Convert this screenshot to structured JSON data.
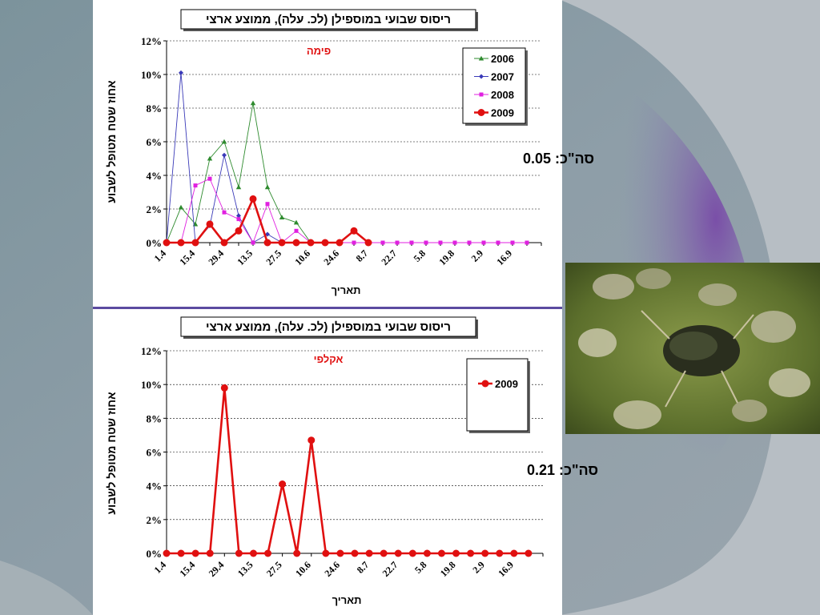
{
  "chart_data": [
    {
      "type": "line",
      "title": "ריסוס שבועי במוספילן (לכ. עלה),  ממוצע ארצי",
      "subtitle": "פימה",
      "ylabel": "אחוז  שטח  מטופל  לשבוע",
      "xlabel": "תאריך",
      "total_label": "סה\"כ: 0.05",
      "ylim": [
        0,
        12
      ],
      "y_ticks": [
        "0%",
        "2%",
        "4%",
        "6%",
        "8%",
        "10%",
        "12%"
      ],
      "x_tick_labels": [
        "1.4",
        "15.4",
        "29.4",
        "13.5",
        "27.5",
        "10.6",
        "24.6",
        "8.7",
        "22.7",
        "5.8",
        "19.8",
        "2.9",
        "16.9"
      ],
      "n_points": 26,
      "grid": true,
      "legend_position": "top-right",
      "series": [
        {
          "name": "2006",
          "color": "#2e8b2e",
          "marker": "triangle",
          "values": [
            0,
            2.1,
            1.1,
            5.0,
            6.0,
            3.3,
            8.3,
            3.3,
            1.5,
            1.2,
            0,
            null,
            null,
            null,
            null,
            null,
            null,
            null,
            null,
            null,
            null,
            null,
            null,
            null,
            null,
            null
          ]
        },
        {
          "name": "2007",
          "color": "#3a3ab8",
          "marker": "diamond",
          "values": [
            0,
            10.1,
            0,
            1.0,
            5.2,
            1.6,
            0,
            0.5,
            0,
            null,
            null,
            null,
            null,
            null,
            null,
            null,
            null,
            null,
            null,
            null,
            null,
            null,
            null,
            null,
            null,
            null
          ]
        },
        {
          "name": "2008",
          "color": "#e020e0",
          "marker": "square",
          "values": [
            0,
            0,
            3.4,
            3.8,
            1.8,
            1.4,
            0,
            2.3,
            0,
            0.7,
            0,
            0,
            0,
            0,
            0,
            0,
            0,
            0,
            0,
            0,
            0,
            0,
            0,
            0,
            0,
            0
          ]
        },
        {
          "name": "2009",
          "color": "#e01010",
          "marker": "circle",
          "values": [
            0,
            0,
            0,
            1.1,
            0,
            0.7,
            2.6,
            0,
            0,
            0,
            0,
            0,
            0,
            0.7,
            0,
            null,
            null,
            null,
            null,
            null,
            null,
            null,
            null,
            null,
            null,
            null
          ]
        }
      ]
    },
    {
      "type": "line",
      "title": "ריסוס שבועי במוספילן (לכ. עלה),  ממוצע ארצי",
      "subtitle": "אקלפי",
      "ylabel": "אחוז  שטח  מטופל  לשבוע",
      "xlabel": "תאריך",
      "total_label": "סה\"כ: 0.21",
      "ylim": [
        0,
        12
      ],
      "y_ticks": [
        "0%",
        "2%",
        "4%",
        "6%",
        "8%",
        "10%",
        "12%"
      ],
      "x_tick_labels": [
        "1.4",
        "15.4",
        "29.4",
        "13.5",
        "27.5",
        "10.6",
        "24.6",
        "8.7",
        "22.7",
        "5.8",
        "19.8",
        "2.9",
        "16.9"
      ],
      "n_points": 26,
      "grid": true,
      "legend_position": "top-right",
      "series": [
        {
          "name": "2009",
          "color": "#e01010",
          "marker": "circle",
          "values": [
            0,
            0,
            0,
            0,
            9.8,
            0,
            0,
            0,
            4.1,
            0,
            6.7,
            0,
            0,
            0,
            0,
            0,
            0,
            0,
            0,
            0,
            0,
            0,
            0,
            0,
            0,
            0
          ]
        }
      ]
    }
  ],
  "photo": {
    "icon": "aphids-photo-icon"
  },
  "colors": {
    "accent": "#6a4fa8",
    "background": "#7d8f9a"
  }
}
